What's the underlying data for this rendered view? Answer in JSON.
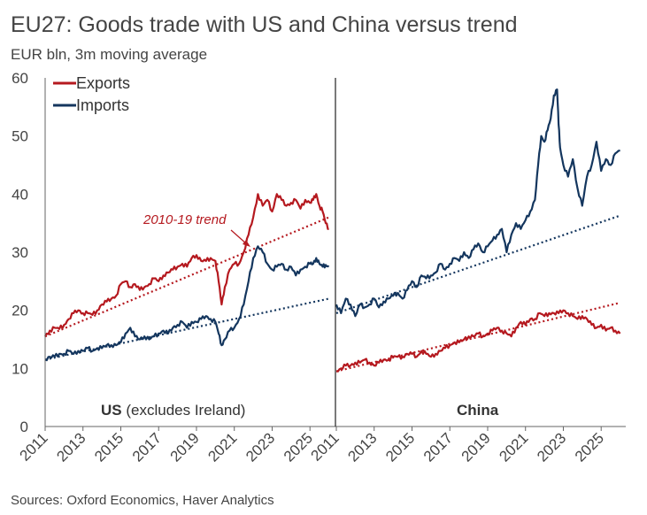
{
  "title": "EU27: Goods trade with US and China versus trend",
  "subtitle": "EUR bln, 3m moving average",
  "source": "Sources: Oxford Economics, Haver Analytics",
  "colors": {
    "exports": "#b5191f",
    "imports": "#14365e"
  },
  "chart_data": {
    "type": "line",
    "ylim": [
      0,
      60
    ],
    "yticks": [
      0,
      10,
      20,
      30,
      40,
      50,
      60
    ],
    "legend": [
      {
        "key": "exports",
        "label": "Exports"
      },
      {
        "key": "imports",
        "label": "Imports"
      }
    ],
    "annotation": "2010-19 trend",
    "panels": [
      {
        "name": "us",
        "label_bold": "US",
        "label_rest": " (excludes Ireland)",
        "xrange": [
          2011,
          2026.3
        ],
        "xticks": [
          "2011",
          "2013",
          "2015",
          "2017",
          "2019",
          "2021",
          "2023",
          "2025"
        ],
        "series": {
          "exports": {
            "x": [
              2011.0,
              2011.25,
              2011.5,
              2011.75,
              2012.0,
              2012.25,
              2012.5,
              2012.75,
              2013.0,
              2013.25,
              2013.5,
              2013.75,
              2014.0,
              2014.25,
              2014.5,
              2014.75,
              2015.0,
              2015.25,
              2015.5,
              2015.75,
              2016.0,
              2016.25,
              2016.5,
              2016.75,
              2017.0,
              2017.25,
              2017.5,
              2017.75,
              2018.0,
              2018.25,
              2018.5,
              2018.75,
              2019.0,
              2019.25,
              2019.5,
              2019.75,
              2020.0,
              2020.17,
              2020.33,
              2020.5,
              2020.75,
              2021.0,
              2021.25,
              2021.5,
              2021.75,
              2022.0,
              2022.25,
              2022.5,
              2022.75,
              2023.0,
              2023.25,
              2023.5,
              2023.75,
              2024.0,
              2024.25,
              2024.5,
              2024.75,
              2025.0,
              2025.17,
              2025.33,
              2025.5,
              2025.67,
              2025.83,
              2026.0
            ],
            "values": [
              15.5,
              16.5,
              17,
              16.8,
              17.5,
              18.5,
              19.5,
              20,
              19.5,
              19.5,
              19.2,
              20,
              21,
              21.5,
              22,
              22.5,
              24.5,
              25,
              24,
              24.5,
              23.5,
              24,
              24.5,
              25.5,
              25,
              26,
              26.5,
              27,
              27.5,
              28,
              27.5,
              29,
              29.5,
              28.5,
              28.5,
              29,
              28.5,
              25,
              21,
              24,
              27,
              28,
              28,
              30,
              33,
              36,
              40,
              38,
              39,
              37,
              40,
              39,
              38,
              38.5,
              39,
              37.5,
              39,
              38.5,
              39,
              40,
              38,
              37,
              35,
              34
            ]
          },
          "imports": {
            "x": [
              2011.0,
              2011.25,
              2011.5,
              2011.75,
              2012.0,
              2012.25,
              2012.5,
              2012.75,
              2013.0,
              2013.25,
              2013.5,
              2013.75,
              2014.0,
              2014.25,
              2014.5,
              2014.75,
              2015.0,
              2015.25,
              2015.5,
              2015.75,
              2016.0,
              2016.25,
              2016.5,
              2016.75,
              2017.0,
              2017.25,
              2017.5,
              2017.75,
              2018.0,
              2018.25,
              2018.5,
              2018.75,
              2019.0,
              2019.25,
              2019.5,
              2019.75,
              2020.0,
              2020.17,
              2020.33,
              2020.5,
              2020.75,
              2021.0,
              2021.25,
              2021.5,
              2021.75,
              2022.0,
              2022.25,
              2022.5,
              2022.75,
              2023.0,
              2023.25,
              2023.5,
              2023.75,
              2024.0,
              2024.25,
              2024.5,
              2024.75,
              2025.0,
              2025.17,
              2025.33,
              2025.5,
              2025.67,
              2025.83,
              2026.0
            ],
            "values": [
              11.5,
              12,
              12,
              12.5,
              12.5,
              13,
              12.5,
              13,
              13,
              13.5,
              13,
              13.5,
              13.5,
              14,
              14,
              14,
              14.5,
              16,
              17,
              15.5,
              15,
              15.5,
              15,
              15.5,
              16,
              16.5,
              16,
              17,
              17.5,
              18,
              17,
              18,
              18,
              18.5,
              19,
              18.5,
              18,
              16,
              14,
              15,
              16.5,
              17,
              18.5,
              21,
              25,
              29,
              31,
              30,
              28,
              27,
              27.5,
              28,
              27,
              27.5,
              26,
              27,
              27.5,
              28,
              28,
              29,
              28,
              27.5,
              27.8,
              27.5
            ]
          }
        },
        "trends": {
          "exports": {
            "x": [
              2011,
              2026
            ],
            "values": [
              15.5,
              36
            ]
          },
          "imports": {
            "x": [
              2011,
              2026
            ],
            "values": [
              11.5,
              22
            ]
          }
        }
      },
      {
        "name": "china",
        "label_bold": "China",
        "label_rest": "",
        "xrange": [
          2011,
          2026.3
        ],
        "xticks": [
          "2011",
          "2013",
          "2015",
          "2017",
          "2019",
          "2021",
          "2023",
          "2025"
        ],
        "series": {
          "exports": {
            "x": [
              2011.0,
              2011.25,
              2011.5,
              2011.75,
              2012.0,
              2012.25,
              2012.5,
              2012.75,
              2013.0,
              2013.25,
              2013.5,
              2013.75,
              2014.0,
              2014.25,
              2014.5,
              2014.75,
              2015.0,
              2015.25,
              2015.5,
              2015.75,
              2016.0,
              2016.25,
              2016.5,
              2016.75,
              2017.0,
              2017.25,
              2017.5,
              2017.75,
              2018.0,
              2018.25,
              2018.5,
              2018.75,
              2019.0,
              2019.25,
              2019.5,
              2019.75,
              2020.0,
              2020.25,
              2020.5,
              2020.75,
              2021.0,
              2021.25,
              2021.5,
              2021.75,
              2022.0,
              2022.25,
              2022.5,
              2022.75,
              2023.0,
              2023.25,
              2023.5,
              2023.75,
              2024.0,
              2024.25,
              2024.5,
              2024.75,
              2025.0,
              2025.25,
              2025.5,
              2025.75,
              2026.0
            ],
            "values": [
              9.5,
              10,
              10.5,
              10.5,
              11,
              11,
              11.5,
              11,
              10.5,
              11,
              11.5,
              11.5,
              12,
              12,
              12,
              12.5,
              12.5,
              12,
              13,
              12.5,
              12,
              12.5,
              13,
              13.5,
              14,
              14.5,
              14.5,
              15,
              15.5,
              15.5,
              16,
              15.5,
              16,
              16.5,
              17,
              16.5,
              16,
              15.5,
              17,
              18,
              17.5,
              18.5,
              18.5,
              19.5,
              19,
              19.5,
              19.5,
              19.5,
              20,
              19.5,
              19,
              18.5,
              19,
              18.5,
              17.5,
              17,
              17.5,
              16.5,
              17,
              16.5,
              16
            ]
          },
          "imports": {
            "x": [
              2011.0,
              2011.25,
              2011.5,
              2011.75,
              2012.0,
              2012.25,
              2012.5,
              2012.75,
              2013.0,
              2013.25,
              2013.5,
              2013.75,
              2014.0,
              2014.25,
              2014.5,
              2014.75,
              2015.0,
              2015.25,
              2015.5,
              2015.75,
              2016.0,
              2016.25,
              2016.5,
              2016.75,
              2017.0,
              2017.25,
              2017.5,
              2017.75,
              2018.0,
              2018.25,
              2018.5,
              2018.75,
              2019.0,
              2019.25,
              2019.5,
              2019.75,
              2020.0,
              2020.25,
              2020.5,
              2020.75,
              2021.0,
              2021.25,
              2021.5,
              2021.67,
              2021.83,
              2022.0,
              2022.17,
              2022.33,
              2022.5,
              2022.67,
              2022.75,
              2022.83,
              2023.0,
              2023.25,
              2023.5,
              2023.75,
              2024.0,
              2024.25,
              2024.5,
              2024.75,
              2025.0,
              2025.25,
              2025.5,
              2025.75,
              2026.0
            ],
            "values": [
              21,
              19.5,
              22,
              21,
              19,
              21,
              20.5,
              21,
              22,
              20.5,
              21.5,
              22,
              22.5,
              23,
              22,
              23.5,
              25,
              24,
              26,
              25.5,
              26,
              26.5,
              28,
              27,
              28,
              29,
              28.5,
              30,
              29,
              30.5,
              31.5,
              30,
              31,
              32,
              33,
              34,
              30,
              33,
              35,
              34,
              35.5,
              37,
              39,
              45,
              50,
              49,
              51,
              53,
              57,
              58,
              52,
              48,
              45,
              43,
              46,
              41,
              38,
              43,
              45,
              49,
              44,
              46,
              45,
              47,
              47.5
            ]
          }
        },
        "trends": {
          "exports": {
            "x": [
              2011,
              2026
            ],
            "values": [
              9.5,
              21.3
            ]
          },
          "imports": {
            "x": [
              2011,
              2026
            ],
            "values": [
              19.5,
              36.3
            ]
          }
        }
      }
    ]
  }
}
